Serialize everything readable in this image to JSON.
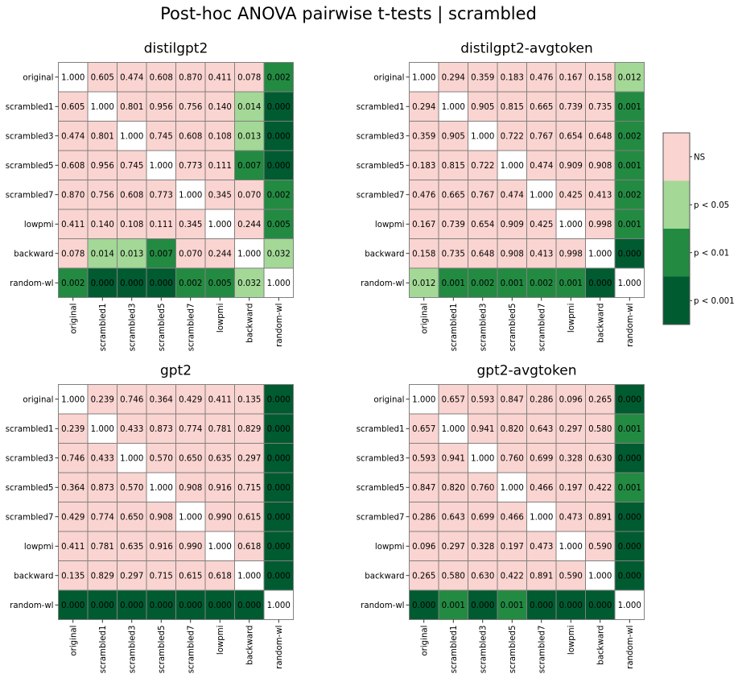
{
  "figure_title": "Post-hoc ANOVA pairwise t-tests | scrambled",
  "colors": {
    "diagonal": "#ffffff",
    "ns": "#fad4d0",
    "p05": "#a3d897",
    "p01": "#238a42",
    "p001": "#005b31",
    "grid": "#808080"
  },
  "legend": {
    "items": [
      {
        "label": "NS",
        "color_key": "ns"
      },
      {
        "label": "p < 0.05",
        "color_key": "p05"
      },
      {
        "label": "p < 0.01",
        "color_key": "p01"
      },
      {
        "label": "p < 0.001",
        "color_key": "p001"
      }
    ]
  },
  "chart_data": [
    {
      "type": "heatmap",
      "title": "distilgpt2",
      "labels": [
        "original",
        "scrambled1",
        "scrambled3",
        "scrambled5",
        "scrambled7",
        "lowpmi",
        "backward",
        "random-wl"
      ],
      "values": [
        [
          "1.000",
          "0.605",
          "0.474",
          "0.608",
          "0.870",
          "0.411",
          "0.078",
          "0.002"
        ],
        [
          "0.605",
          "1.000",
          "0.801",
          "0.956",
          "0.756",
          "0.140",
          "0.014",
          "0.000"
        ],
        [
          "0.474",
          "0.801",
          "1.000",
          "0.745",
          "0.608",
          "0.108",
          "0.013",
          "0.000"
        ],
        [
          "0.608",
          "0.956",
          "0.745",
          "1.000",
          "0.773",
          "0.111",
          "0.007",
          "0.000"
        ],
        [
          "0.870",
          "0.756",
          "0.608",
          "0.773",
          "1.000",
          "0.345",
          "0.070",
          "0.002"
        ],
        [
          "0.411",
          "0.140",
          "0.108",
          "0.111",
          "0.345",
          "1.000",
          "0.244",
          "0.005"
        ],
        [
          "0.078",
          "0.014",
          "0.013",
          "0.007",
          "0.070",
          "0.244",
          "1.000",
          "0.032"
        ],
        [
          "0.002",
          "0.000",
          "0.000",
          "0.000",
          "0.002",
          "0.005",
          "0.032",
          "1.000"
        ]
      ]
    },
    {
      "type": "heatmap",
      "title": "distilgpt2-avgtoken",
      "labels": [
        "original",
        "scrambled1",
        "scrambled3",
        "scrambled5",
        "scrambled7",
        "lowpmi",
        "backward",
        "random-wl"
      ],
      "values": [
        [
          "1.000",
          "0.294",
          "0.359",
          "0.183",
          "0.476",
          "0.167",
          "0.158",
          "0.012"
        ],
        [
          "0.294",
          "1.000",
          "0.905",
          "0.815",
          "0.665",
          "0.739",
          "0.735",
          "0.001"
        ],
        [
          "0.359",
          "0.905",
          "1.000",
          "0.722",
          "0.767",
          "0.654",
          "0.648",
          "0.002"
        ],
        [
          "0.183",
          "0.815",
          "0.722",
          "1.000",
          "0.474",
          "0.909",
          "0.908",
          "0.001"
        ],
        [
          "0.476",
          "0.665",
          "0.767",
          "0.474",
          "1.000",
          "0.425",
          "0.413",
          "0.002"
        ],
        [
          "0.167",
          "0.739",
          "0.654",
          "0.909",
          "0.425",
          "1.000",
          "0.998",
          "0.001"
        ],
        [
          "0.158",
          "0.735",
          "0.648",
          "0.908",
          "0.413",
          "0.998",
          "1.000",
          "0.000"
        ],
        [
          "0.012",
          "0.001",
          "0.002",
          "0.001",
          "0.002",
          "0.001",
          "0.000",
          "1.000"
        ]
      ]
    },
    {
      "type": "heatmap",
      "title": "gpt2",
      "labels": [
        "original",
        "scrambled1",
        "scrambled3",
        "scrambled5",
        "scrambled7",
        "lowpmi",
        "backward",
        "random-wl"
      ],
      "values": [
        [
          "1.000",
          "0.239",
          "0.746",
          "0.364",
          "0.429",
          "0.411",
          "0.135",
          "0.000"
        ],
        [
          "0.239",
          "1.000",
          "0.433",
          "0.873",
          "0.774",
          "0.781",
          "0.829",
          "0.000"
        ],
        [
          "0.746",
          "0.433",
          "1.000",
          "0.570",
          "0.650",
          "0.635",
          "0.297",
          "0.000"
        ],
        [
          "0.364",
          "0.873",
          "0.570",
          "1.000",
          "0.908",
          "0.916",
          "0.715",
          "0.000"
        ],
        [
          "0.429",
          "0.774",
          "0.650",
          "0.908",
          "1.000",
          "0.990",
          "0.615",
          "0.000"
        ],
        [
          "0.411",
          "0.781",
          "0.635",
          "0.916",
          "0.990",
          "1.000",
          "0.618",
          "0.000"
        ],
        [
          "0.135",
          "0.829",
          "0.297",
          "0.715",
          "0.615",
          "0.618",
          "1.000",
          "0.000"
        ],
        [
          "0.000",
          "0.000",
          "0.000",
          "0.000",
          "0.000",
          "0.000",
          "0.000",
          "1.000"
        ]
      ]
    },
    {
      "type": "heatmap",
      "title": "gpt2-avgtoken",
      "labels": [
        "original",
        "scrambled1",
        "scrambled3",
        "scrambled5",
        "scrambled7",
        "lowpmi",
        "backward",
        "random-wl"
      ],
      "values": [
        [
          "1.000",
          "0.657",
          "0.593",
          "0.847",
          "0.286",
          "0.096",
          "0.265",
          "0.000"
        ],
        [
          "0.657",
          "1.000",
          "0.941",
          "0.820",
          "0.643",
          "0.297",
          "0.580",
          "0.001"
        ],
        [
          "0.593",
          "0.941",
          "1.000",
          "0.760",
          "0.699",
          "0.328",
          "0.630",
          "0.000"
        ],
        [
          "0.847",
          "0.820",
          "0.760",
          "1.000",
          "0.466",
          "0.197",
          "0.422",
          "0.001"
        ],
        [
          "0.286",
          "0.643",
          "0.699",
          "0.466",
          "1.000",
          "0.473",
          "0.891",
          "0.000"
        ],
        [
          "0.096",
          "0.297",
          "0.328",
          "0.197",
          "0.473",
          "1.000",
          "0.590",
          "0.000"
        ],
        [
          "0.265",
          "0.580",
          "0.630",
          "0.422",
          "0.891",
          "0.590",
          "1.000",
          "0.000"
        ],
        [
          "0.000",
          "0.001",
          "0.000",
          "0.001",
          "0.000",
          "0.000",
          "0.000",
          "1.000"
        ]
      ]
    }
  ]
}
